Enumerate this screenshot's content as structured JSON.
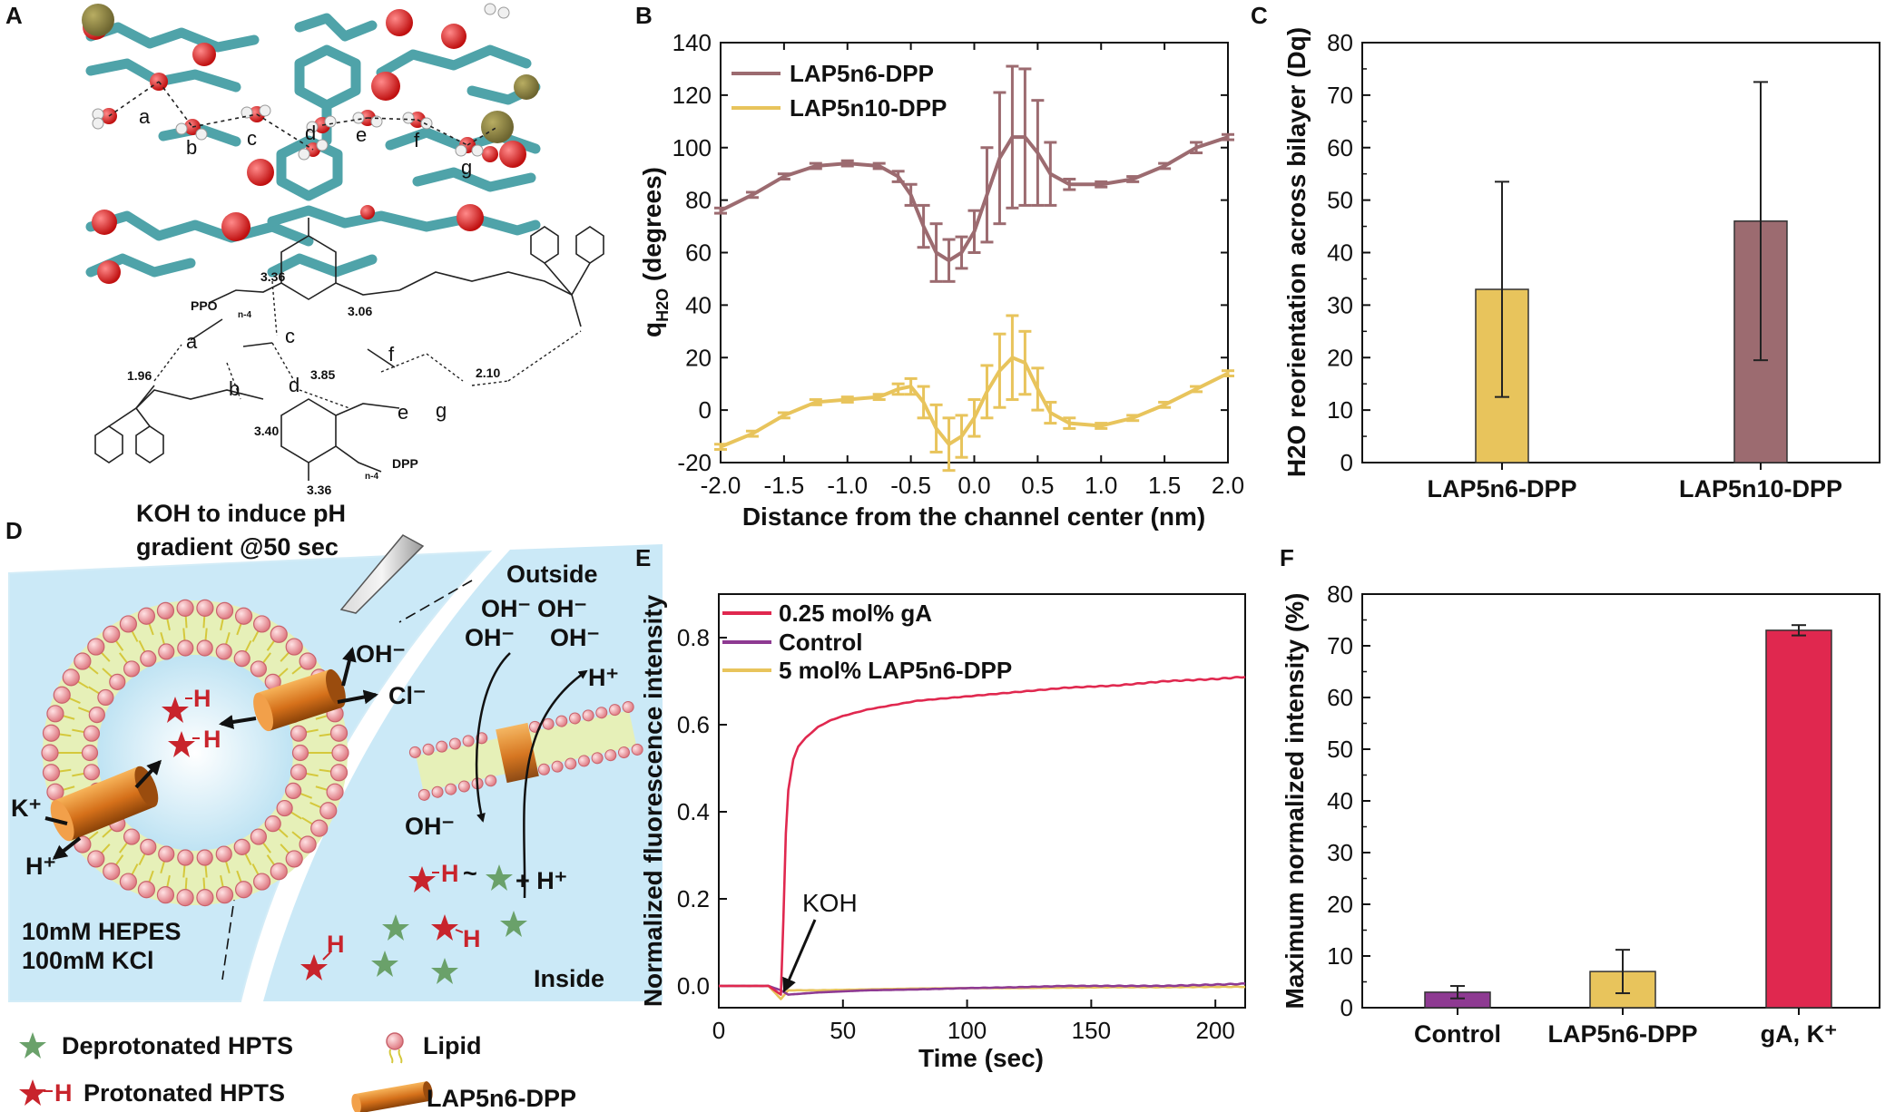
{
  "panels": {
    "A": {
      "label": "A",
      "snapshot_labels": [
        "a",
        "b",
        "c",
        "d",
        "e",
        "f",
        "g"
      ],
      "schematic": {
        "atom_labels": [
          "a",
          "b",
          "c",
          "d",
          "e",
          "f",
          "g"
        ],
        "distances": [
          "3.36",
          "3.06",
          "1.96",
          "3.85",
          "2.10",
          "3.40",
          "3.36"
        ],
        "groups": [
          "PPO",
          "DPP"
        ],
        "subscripts": [
          "n-4",
          "n-4"
        ]
      }
    },
    "D": {
      "label": "D",
      "title_line1": "KOH to induce pH",
      "title_line2": "gradient @50 sec",
      "outside_label": "Outside",
      "inside_label": "Inside",
      "oh_labels": [
        "OH⁻",
        "OH⁻",
        "OH⁻",
        "OH⁻",
        "OH⁻",
        "OH⁻"
      ],
      "ion_labels": {
        "h_plus": "H⁺",
        "cl": "Cl⁻",
        "k_plus": "K⁺",
        "h_plus_2": "H⁺",
        "h_plus_3": "H⁺",
        "h_plus_4": "+ H⁺",
        "star_h": "H"
      },
      "buffer_line1": "10mM HEPES",
      "buffer_line2": "100mM KCl",
      "legend": {
        "deprotonated": "Deprotonated HPTS",
        "protonated": "Protonated HPTS",
        "lipid": "Lipid",
        "channel": "LAP5n6-DPP"
      }
    }
  },
  "colors": {
    "lap5n6": "#9c6b70",
    "lap5n10": "#e8c45c",
    "ga": "#e0284f",
    "control": "#8e3a92",
    "bar_lap": "#e8c45c",
    "vesicle_bg": "#cbe9f7",
    "lipid_head": "#f2a3a8",
    "channel": "#e08a2c",
    "star_green": "#6aa16a",
    "star_red": "#c8242c"
  },
  "chart_data": [
    {
      "panel": "B",
      "type": "line",
      "xlabel": "Distance from the channel center (nm)",
      "ylabel": "q",
      "ylabel_sub": "H2O",
      "ylabel_tail": " (degrees)",
      "xlim": [
        -2.0,
        2.0
      ],
      "ylim": [
        -20,
        140
      ],
      "xticks": [
        "-2.0",
        "-1.5",
        "-1.0",
        "-0.5",
        "0.0",
        "0.5",
        "1.0",
        "1.5",
        "2.0"
      ],
      "xtick_values": [
        -2.0,
        -1.5,
        -1.0,
        -0.5,
        0.0,
        0.5,
        1.0,
        1.5,
        2.0
      ],
      "yticks": [
        "-20",
        "0",
        "20",
        "40",
        "60",
        "80",
        "100",
        "120",
        "140"
      ],
      "ytick_values": [
        -20,
        0,
        20,
        40,
        60,
        80,
        100,
        120,
        140
      ],
      "series": [
        {
          "name": "LAP5n6-DPP",
          "x": [
            -2.0,
            -1.75,
            -1.5,
            -1.25,
            -1.0,
            -0.75,
            -0.6,
            -0.5,
            -0.4,
            -0.3,
            -0.2,
            -0.1,
            0.0,
            0.1,
            0.2,
            0.3,
            0.4,
            0.5,
            0.6,
            0.75,
            1.0,
            1.25,
            1.5,
            1.75,
            2.0
          ],
          "y": [
            76,
            82,
            89,
            93,
            94,
            93,
            89,
            82,
            70,
            60,
            57,
            60,
            68,
            82,
            96,
            104,
            104,
            98,
            90,
            86,
            86,
            88,
            93,
            100,
            104
          ],
          "err": [
            1,
            1,
            1,
            1,
            1,
            1,
            2,
            4,
            8,
            11,
            8,
            6,
            8,
            18,
            25,
            27,
            26,
            20,
            12,
            2,
            1,
            1,
            1,
            2,
            1
          ]
        },
        {
          "name": "LAP5n10-DPP",
          "x": [
            -2.0,
            -1.75,
            -1.5,
            -1.25,
            -1.0,
            -0.75,
            -0.6,
            -0.5,
            -0.4,
            -0.3,
            -0.2,
            -0.1,
            0.0,
            0.1,
            0.2,
            0.3,
            0.4,
            0.5,
            0.6,
            0.75,
            1.0,
            1.25,
            1.5,
            1.75,
            2.0
          ],
          "y": [
            -14,
            -9,
            -2,
            3,
            4,
            5,
            8,
            9,
            3,
            -7,
            -13,
            -10,
            -3,
            7,
            15,
            20,
            18,
            8,
            -1,
            -5,
            -6,
            -3,
            2,
            8,
            14
          ],
          "err": [
            1,
            1,
            1,
            1,
            1,
            1,
            2,
            3,
            6,
            9,
            10,
            8,
            7,
            10,
            14,
            16,
            12,
            8,
            4,
            2,
            1,
            1,
            1,
            1,
            1
          ]
        }
      ]
    },
    {
      "panel": "C",
      "type": "bar",
      "xlabel": "",
      "ylabel": "H2O reorientation across bilayer (Dq)",
      "ylim": [
        0,
        80
      ],
      "yticks": [
        "0",
        "10",
        "20",
        "30",
        "40",
        "50",
        "60",
        "70",
        "80"
      ],
      "ytick_values": [
        0,
        10,
        20,
        30,
        40,
        50,
        60,
        70,
        80
      ],
      "categories": [
        "LAP5n6-DPP",
        "LAP5n10-DPP"
      ],
      "values": [
        33,
        46
      ],
      "err": [
        20.5,
        26.5
      ]
    },
    {
      "panel": "E",
      "type": "line",
      "xlabel": "Time (sec)",
      "ylabel": "Normalized fluorescence intensity",
      "xlim": [
        0,
        212
      ],
      "ylim": [
        -0.05,
        0.9
      ],
      "xticks": [
        "0",
        "50",
        "100",
        "150",
        "200"
      ],
      "xtick_values": [
        0,
        50,
        100,
        150,
        200
      ],
      "yticks": [
        "0.0",
        "0.2",
        "0.4",
        "0.6",
        "0.8"
      ],
      "ytick_values": [
        0.0,
        0.2,
        0.4,
        0.6,
        0.8
      ],
      "annotation": "KOH",
      "annotation_x": 25,
      "series": [
        {
          "name": "0.25 mol% gA",
          "x": [
            0,
            10,
            20,
            25,
            26,
            27,
            28,
            30,
            32,
            35,
            40,
            45,
            50,
            60,
            70,
            80,
            90,
            100,
            120,
            140,
            160,
            180,
            200,
            212
          ],
          "y": [
            0.0,
            0.0,
            0.0,
            -0.02,
            0.15,
            0.35,
            0.45,
            0.52,
            0.55,
            0.57,
            0.595,
            0.61,
            0.62,
            0.635,
            0.645,
            0.655,
            0.66,
            0.665,
            0.675,
            0.685,
            0.69,
            0.7,
            0.705,
            0.71
          ]
        },
        {
          "name": "Control",
          "x": [
            0,
            10,
            20,
            25,
            28,
            40,
            60,
            80,
            100,
            120,
            140,
            160,
            180,
            200,
            212
          ],
          "y": [
            0.0,
            0.0,
            0.0,
            -0.01,
            -0.02,
            -0.015,
            -0.01,
            -0.008,
            -0.005,
            -0.003,
            0.0,
            0.0,
            0.0,
            0.003,
            0.005
          ]
        },
        {
          "name": "5 mol% LAP5n6-DPP",
          "x": [
            0,
            10,
            20,
            25,
            28,
            40,
            60,
            80,
            100,
            120,
            140,
            160,
            180,
            200,
            212
          ],
          "y": [
            0.0,
            0.0,
            0.0,
            -0.03,
            -0.01,
            -0.01,
            -0.008,
            -0.006,
            -0.005,
            -0.005,
            -0.004,
            -0.003,
            -0.003,
            -0.002,
            -0.002
          ]
        }
      ]
    },
    {
      "panel": "F",
      "type": "bar",
      "xlabel": "",
      "ylabel": "Maximum normalized intensity (%)",
      "ylim": [
        0,
        80
      ],
      "yticks": [
        "0",
        "10",
        "20",
        "30",
        "40",
        "50",
        "60",
        "70",
        "80"
      ],
      "ytick_values": [
        0,
        10,
        20,
        30,
        40,
        50,
        60,
        70,
        80
      ],
      "categories": [
        "Control",
        "LAP5n6-DPP",
        "gA, K⁺"
      ],
      "values": [
        3,
        7,
        73
      ],
      "err": [
        1.2,
        4.2,
        1
      ]
    }
  ]
}
